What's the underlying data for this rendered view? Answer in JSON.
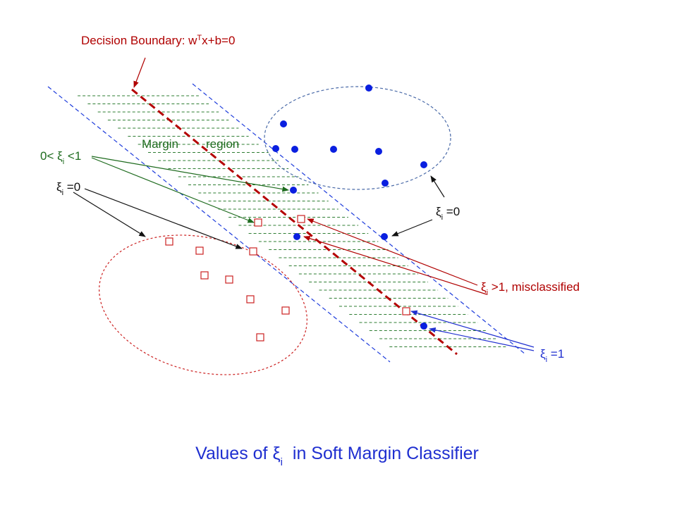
{
  "colors": {
    "boundary": "#b40000",
    "margin_line": "#1f3ddc",
    "hatch": "#2e7d32",
    "blue_point": "#0a1fe0",
    "red_square": "#cc2222",
    "green_text": "#1e6b1e",
    "red_text": "#b00000",
    "blue_text": "#1f2fd0",
    "title_text": "#1f2fd0",
    "black_text": "#111111",
    "blue_ellipse": "#4a6aa8",
    "red_ellipse": "#cc2222"
  },
  "labels": {
    "decision_boundary": {
      "prefix": "Decision Boundary: w",
      "sup": "T",
      "suffix": "x+b=0"
    },
    "margin_region": {
      "word1": "Margin",
      "word2": "region"
    },
    "xi_between": {
      "prefix": "0< ξ",
      "sub": "i",
      "suffix": " <1"
    },
    "xi_zero_left": {
      "prefix": "ξ",
      "sub": "i",
      "suffix": " =0"
    },
    "xi_zero_right": {
      "prefix": "ξ",
      "sub": "i",
      "suffix": " =0"
    },
    "xi_misclassified": {
      "prefix": "ξ",
      "sub": "i",
      "suffix": " >1, misclassified"
    },
    "xi_one": {
      "prefix": "ξ",
      "sub": "i",
      "suffix": " =1"
    }
  },
  "title": {
    "prefix": "Values of ξ",
    "sub": "i",
    "suffix": "  in Soft Margin Classifier"
  }
}
